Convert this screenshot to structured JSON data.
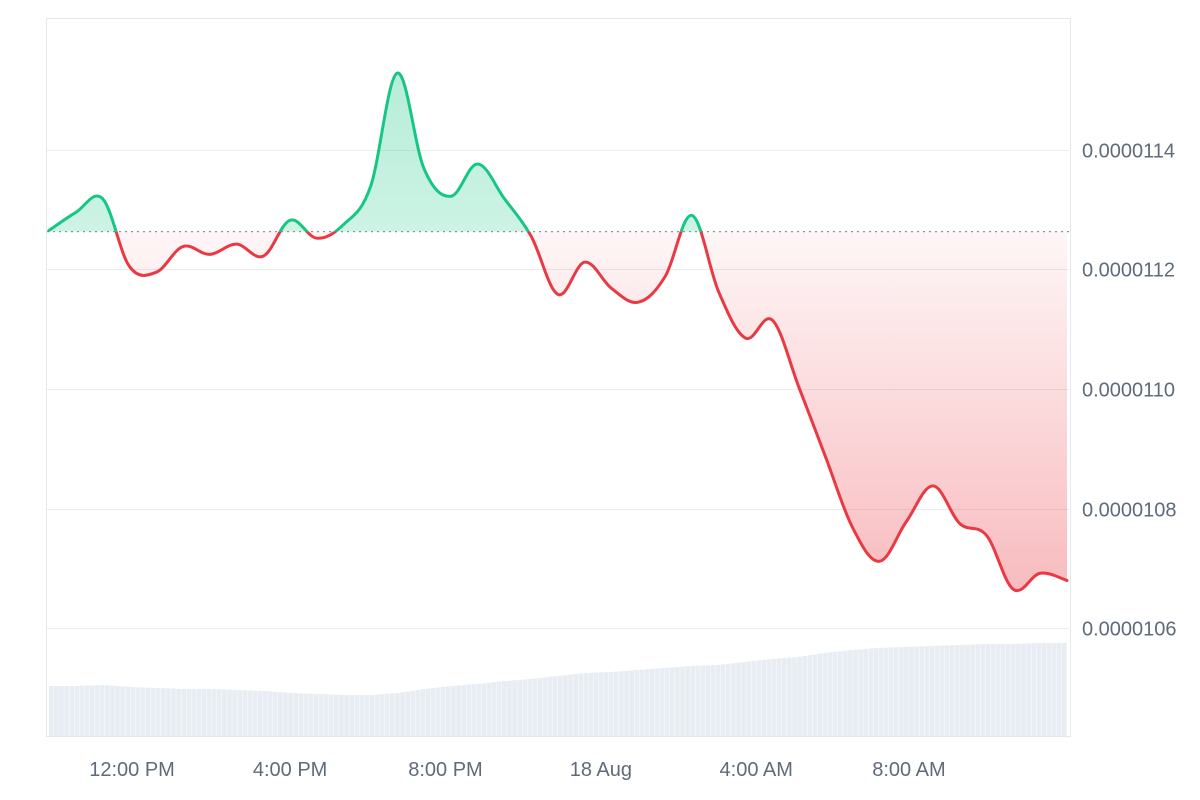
{
  "chart_data": {
    "type": "line",
    "title": "",
    "xlabel": "",
    "ylabel": "",
    "ylim": [
      1.042e-05,
      1.162e-05
    ],
    "y_ticks": [
      {
        "value": 1.06e-05,
        "label": "0.0000106"
      },
      {
        "value": 1.08e-05,
        "label": "0.0000108"
      },
      {
        "value": 1.1e-05,
        "label": "0.0000110"
      },
      {
        "value": 1.12e-05,
        "label": "0.0000112"
      },
      {
        "value": 1.14e-05,
        "label": "0.0000114"
      }
    ],
    "x_ticks": [
      {
        "index": 3.1,
        "label": "12:00 PM"
      },
      {
        "index": 9.0,
        "label": "4:00 PM"
      },
      {
        "index": 14.8,
        "label": "8:00 PM"
      },
      {
        "index": 20.6,
        "label": "18 Aug"
      },
      {
        "index": 26.4,
        "label": "4:00 AM"
      },
      {
        "index": 32.1,
        "label": "8:00 AM"
      }
    ],
    "baseline": 1.1263e-05,
    "colors": {
      "up": "#16c784",
      "down": "#ea3943",
      "up_fill": "#16c784",
      "down_fill": "#ea3943",
      "volume": "#e7edf2",
      "baseline": "#8a94a0"
    },
    "series": [
      {
        "values": [
          1.1265e-05,
          1.1295e-05,
          1.1318e-05,
          1.1205e-05,
          1.1195e-05,
          1.1238e-05,
          1.1225e-05,
          1.1242e-05,
          1.1222e-05,
          1.1282e-05,
          1.1252e-05,
          1.1275e-05,
          1.1338e-05,
          1.1528e-05,
          1.1368e-05,
          1.1322e-05,
          1.1376e-05,
          1.1318e-05,
          1.1255e-05,
          1.1158e-05,
          1.1212e-05,
          1.1168e-05,
          1.1145e-05,
          1.1188e-05,
          1.129e-05,
          1.1162e-05,
          1.1085e-05,
          1.1115e-05,
          1.1002e-05,
          1.0885e-05,
          1.0768e-05,
          1.0712e-05,
          1.0778e-05,
          1.0838e-05,
          1.0775e-05,
          1.0755e-05,
          1.0665e-05,
          1.0692e-05,
          1.068e-05
        ]
      }
    ],
    "volume": [
      0.5,
      0.5,
      0.51,
      0.49,
      0.48,
      0.47,
      0.47,
      0.46,
      0.45,
      0.43,
      0.42,
      0.41,
      0.41,
      0.43,
      0.47,
      0.5,
      0.52,
      0.55,
      0.57,
      0.6,
      0.63,
      0.64,
      0.66,
      0.68,
      0.7,
      0.71,
      0.74,
      0.77,
      0.79,
      0.83,
      0.86,
      0.88,
      0.89,
      0.9,
      0.91,
      0.92,
      0.92,
      0.93,
      0.93
    ]
  }
}
